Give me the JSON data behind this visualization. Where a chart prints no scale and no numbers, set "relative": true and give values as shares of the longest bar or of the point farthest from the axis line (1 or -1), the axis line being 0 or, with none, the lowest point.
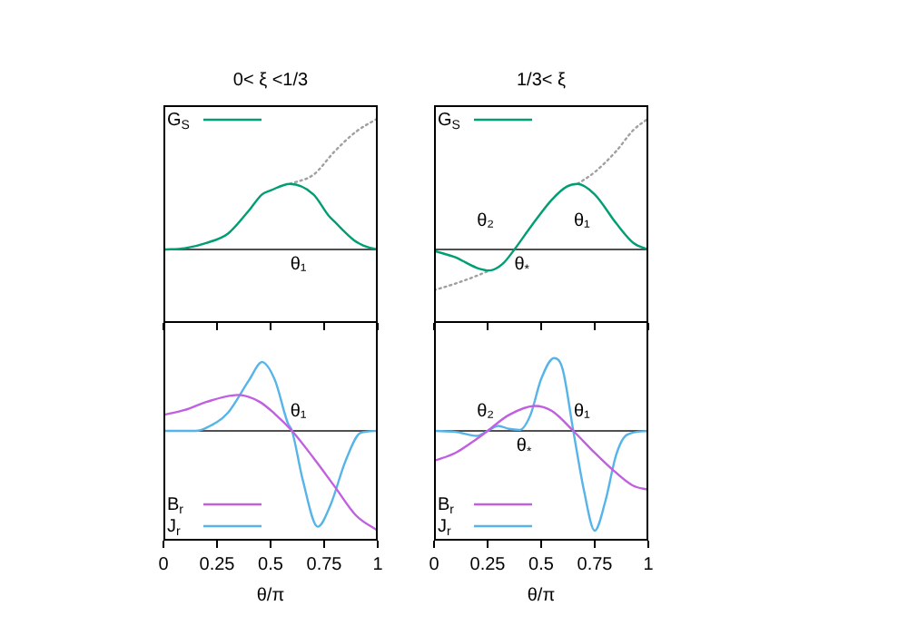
{
  "chart_data": [
    {
      "type": "line",
      "title": "0< ξ <1/3",
      "relative": true,
      "xlim": [
        0,
        1
      ],
      "xticks": [
        0,
        0.25,
        0.5,
        0.75,
        1
      ],
      "tick_labels": false,
      "legend": "top left",
      "series": [
        {
          "name": "G$_{S}$",
          "color": "#009e73",
          "x": [
            0,
            0.1,
            0.2,
            0.3,
            0.4,
            0.46,
            0.5,
            0.59,
            0.7,
            0.77,
            0.8,
            0.89,
            0.95,
            1
          ],
          "values": [
            0,
            0.01,
            0.05,
            0.12,
            0.3,
            0.42,
            0.45,
            0.5,
            0.42,
            0.26,
            0.21,
            0.07,
            0.02,
            0
          ]
        },
        {
          "color": "#a0a0a0",
          "line_style": "dotted",
          "x": [
            0.59,
            0.7,
            0.8,
            0.9,
            1
          ],
          "values": [
            0.5,
            0.57,
            0.75,
            0.9,
            1
          ]
        }
      ],
      "annotations": [
        "θ₁"
      ]
    },
    {
      "type": "line",
      "title": "1/3< ξ",
      "relative": true,
      "xlim": [
        0,
        1
      ],
      "xticks": [
        0,
        0.25,
        0.5,
        0.75,
        1
      ],
      "tick_labels": false,
      "legend": "top left",
      "series": [
        {
          "name": "G$_{S}$",
          "color": "#009e73",
          "x": [
            0,
            0.1,
            0.2,
            0.26,
            0.32,
            0.375,
            0.45,
            0.55,
            0.62,
            0.67,
            0.75,
            0.85,
            0.93,
            1
          ],
          "values": [
            -0.01,
            -0.06,
            -0.14,
            -0.16,
            -0.11,
            0,
            0.17,
            0.38,
            0.48,
            0.5,
            0.42,
            0.2,
            0.05,
            0
          ]
        },
        {
          "color": "#a0a0a0",
          "line_style": "dotted",
          "x": [
            0,
            0.1,
            0.2,
            0.26,
            0.45,
            0.67,
            0.75,
            0.85,
            0.93,
            1
          ],
          "values": [
            -0.31,
            -0.26,
            -0.2,
            -0.16,
            null,
            0.5,
            0.59,
            0.75,
            0.91,
            1
          ]
        }
      ],
      "annotations": [
        "θ₂",
        "θ₁",
        "θ$_{*}$"
      ]
    },
    {
      "type": "line",
      "xlabel": "θ/π",
      "relative": true,
      "xlim": [
        0,
        1
      ],
      "xticks": [
        0,
        0.25,
        0.5,
        0.75,
        1
      ],
      "tick_labels": "x",
      "legend": "bottom left",
      "series": [
        {
          "name": "B$_{r}$",
          "color": "#c060e0",
          "x": [
            0,
            0.1,
            0.2,
            0.35,
            0.45,
            0.52,
            0.6,
            0.7,
            0.8,
            0.9,
            1
          ],
          "values": [
            0.16,
            0.21,
            0.29,
            0.36,
            0.29,
            0.17,
            0,
            -0.27,
            -0.56,
            -0.85,
            -1
          ]
        },
        {
          "name": "J$_{r}$",
          "color": "#56b4e9",
          "x": [
            0,
            0.15,
            0.2,
            0.3,
            0.4,
            0.46,
            0.52,
            0.58,
            0.6,
            0.65,
            0.72,
            0.78,
            0.85,
            0.92,
            1
          ],
          "values": [
            0,
            0,
            0.03,
            0.18,
            0.51,
            0.69,
            0.51,
            0.08,
            0,
            -0.49,
            -0.96,
            -0.74,
            -0.3,
            -0.02,
            0
          ]
        }
      ],
      "annotations": [
        "θ₁"
      ]
    },
    {
      "type": "line",
      "xlabel": "θ/π",
      "relative": true,
      "xlim": [
        0,
        1
      ],
      "xticks": [
        0,
        0.25,
        0.5,
        0.75,
        1
      ],
      "tick_labels": "x",
      "legend": "bottom left",
      "series": [
        {
          "name": "B$_{r}$",
          "color": "#c060e0",
          "x": [
            0,
            0.1,
            0.2,
            0.25,
            0.35,
            0.47,
            0.55,
            0.65,
            0.75,
            0.85,
            0.93,
            1
          ],
          "values": [
            -0.3,
            -0.22,
            -0.08,
            0,
            0.16,
            0.25,
            0.2,
            0,
            -0.22,
            -0.42,
            -0.55,
            -0.59
          ]
        },
        {
          "name": "J$_{r}$",
          "color": "#56b4e9",
          "x": [
            0,
            0.1,
            0.2,
            0.25,
            0.3,
            0.35,
            0.4,
            0.45,
            0.5,
            0.56,
            0.6,
            0.65,
            0.7,
            0.75,
            0.8,
            0.85,
            0.9,
            1
          ],
          "values": [
            0,
            -0.01,
            -0.05,
            0,
            0.05,
            0.02,
            0.01,
            0.16,
            0.52,
            0.73,
            0.62,
            0,
            -0.6,
            -1,
            -0.7,
            -0.24,
            -0.04,
            0
          ]
        }
      ],
      "annotations": [
        "θ₂",
        "θ₁",
        "θ$_{*}$"
      ]
    }
  ]
}
